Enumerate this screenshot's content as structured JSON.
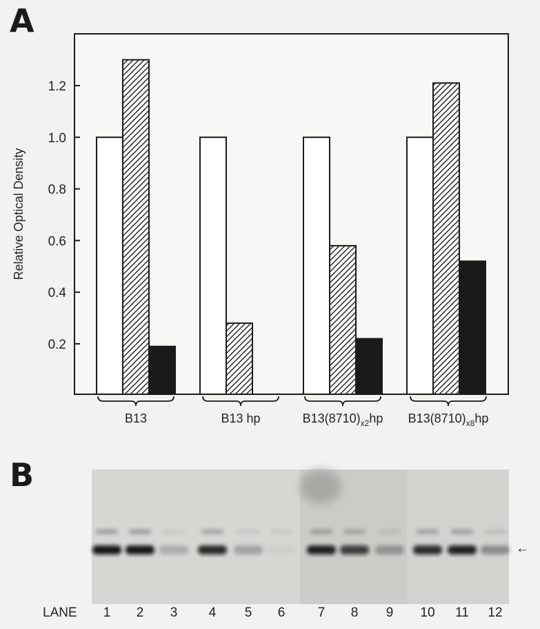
{
  "panel_a_label": "A",
  "panel_b_label": "B",
  "chart_data": {
    "type": "bar",
    "ylabel": "Relative Optical Density",
    "xlabel": "",
    "ylim": [
      0.0,
      1.4
    ],
    "yticks": [
      0.2,
      0.4,
      0.6,
      0.8,
      1.0,
      1.2
    ],
    "ytick_labels": [
      "0.2",
      "0.4",
      "0.6",
      "0.8",
      "1.0",
      "1.2"
    ],
    "categories": [
      {
        "label": "B13",
        "parts": [
          {
            "t": "B13"
          }
        ]
      },
      {
        "label": "B13 hp",
        "parts": [
          {
            "t": "B13 hp"
          }
        ]
      },
      {
        "label": "B13(8710)x2hp",
        "parts": [
          {
            "t": "B13(8710)"
          },
          {
            "t": "x2",
            "sub": true
          },
          {
            "t": "hp"
          }
        ]
      },
      {
        "label": "B13(8710)x8hp",
        "parts": [
          {
            "t": "B13(8710)"
          },
          {
            "t": "x8",
            "sub": true
          },
          {
            "t": "hp"
          }
        ]
      }
    ],
    "series": [
      {
        "fill": "open",
        "values": [
          1.0,
          1.0,
          1.0,
          1.0
        ]
      },
      {
        "fill": "hatched",
        "values": [
          1.3,
          0.28,
          0.58,
          1.21
        ]
      },
      {
        "fill": "solid",
        "values": [
          0.19,
          0.0,
          0.22,
          0.52
        ]
      }
    ],
    "grid": false,
    "colors": {
      "ink": "#1a1a1a",
      "paper": "#ffffff"
    }
  },
  "gel": {
    "lane_prefix": "LANE",
    "lanes": [
      "1",
      "2",
      "3",
      "4",
      "5",
      "6",
      "7",
      "8",
      "9",
      "10",
      "11",
      "12"
    ],
    "band_intensity": [
      0.95,
      0.95,
      0.2,
      0.85,
      0.25,
      0.03,
      0.9,
      0.75,
      0.3,
      0.85,
      0.9,
      0.35
    ],
    "arrow": "←"
  }
}
